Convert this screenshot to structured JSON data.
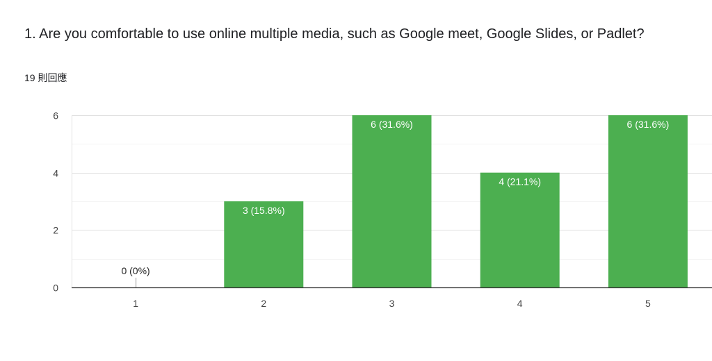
{
  "question": {
    "title": "1. Are you comfortable to use online multiple media, such as Google meet, Google Slides, or Padlet?",
    "response_count": "19 則回應"
  },
  "colors": {
    "bar": "#4caf50",
    "grid": "#e0e0e0",
    "grid_minor": "#f3f3f3",
    "axis": "#333333",
    "label_inside": "#ffffff",
    "label_outside": "#222222"
  },
  "chart_data": {
    "type": "bar",
    "categories": [
      "1",
      "2",
      "3",
      "4",
      "5"
    ],
    "values": [
      0,
      3,
      6,
      4,
      6
    ],
    "data_labels": [
      "0 (0%)",
      "3 (15.8%)",
      "6 (31.6%)",
      "4 (21.1%)",
      "6 (31.6%)"
    ],
    "ylim": [
      0,
      6
    ],
    "yticks": [
      0,
      2,
      4,
      6
    ],
    "grid": true,
    "xlabel": "",
    "ylabel": ""
  }
}
